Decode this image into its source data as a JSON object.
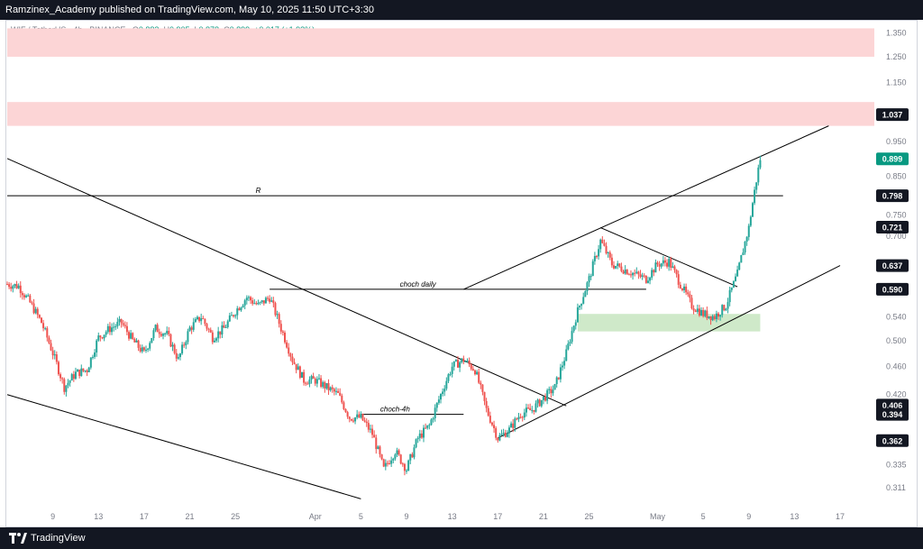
{
  "header": {
    "text": "Ramzinex_Academy published on TradingView.com, May 10, 2025 11:50 UTC+3:30"
  },
  "legend": {
    "symbol": "WIF / TetherUS · 4h · BINANCE",
    "o_label": "O",
    "o": "0.882",
    "h_label": "H",
    "h": "0.905",
    "l_label": "L",
    "l": "0.878",
    "c_label": "C",
    "c": "0.899",
    "change": "+0.017 (+1.93%)"
  },
  "footer": {
    "brand": "TradingView"
  },
  "colors": {
    "up": "#26a69a",
    "down": "#ef5350",
    "supply": "#fcd5d6",
    "demand": "#cfe9c9",
    "last": "#089981",
    "line": "#000000"
  },
  "chart_data": {
    "type": "candlestick",
    "yscale": "log",
    "ylim": [
      0.29,
      1.4
    ],
    "yticks": [
      "1.350",
      "1.250",
      "1.150",
      "0.950",
      "0.850",
      "0.750",
      "0.700",
      "0.540",
      "0.500",
      "0.460",
      "0.420",
      "0.335",
      "0.311"
    ],
    "price_labels": [
      {
        "text": "1.037",
        "value": 1.037,
        "style": "dark"
      },
      {
        "text": "0.899",
        "value": 0.899,
        "style": "last"
      },
      {
        "text": "0.798",
        "value": 0.798,
        "style": "dark"
      },
      {
        "text": "0.721",
        "value": 0.721,
        "style": "dark"
      },
      {
        "text": "0.637",
        "value": 0.637,
        "style": "dark"
      },
      {
        "text": "0.590",
        "value": 0.59,
        "style": "dark"
      },
      {
        "text": "0.406",
        "value": 0.406,
        "style": "dark"
      },
      {
        "text": "0.394",
        "value": 0.394,
        "style": "dark"
      },
      {
        "text": "0.362",
        "value": 0.362,
        "style": "dark"
      }
    ],
    "xticks": [
      {
        "label": "9",
        "date": "2025-03-09"
      },
      {
        "label": "13",
        "date": "2025-03-13"
      },
      {
        "label": "17",
        "date": "2025-03-17"
      },
      {
        "label": "21",
        "date": "2025-03-21"
      },
      {
        "label": "25",
        "date": "2025-03-25"
      },
      {
        "label": "Apr",
        "date": "2025-04-01"
      },
      {
        "label": "5",
        "date": "2025-04-05"
      },
      {
        "label": "9",
        "date": "2025-04-09"
      },
      {
        "label": "13",
        "date": "2025-04-13"
      },
      {
        "label": "17",
        "date": "2025-04-17"
      },
      {
        "label": "21",
        "date": "2025-04-21"
      },
      {
        "label": "25",
        "date": "2025-04-25"
      },
      {
        "label": "May",
        "date": "2025-05-01"
      },
      {
        "label": "5",
        "date": "2025-05-05"
      },
      {
        "label": "9",
        "date": "2025-05-09"
      },
      {
        "label": "13",
        "date": "2025-05-13"
      },
      {
        "label": "17",
        "date": "2025-05-17"
      }
    ],
    "price_path": [
      [
        "2025-03-05",
        0.6
      ],
      [
        "2025-03-06",
        0.596
      ],
      [
        "2025-03-07",
        0.565
      ],
      [
        "2025-03-08",
        0.53
      ],
      [
        "2025-03-09",
        0.48
      ],
      [
        "2025-03-10",
        0.43
      ],
      [
        "2025-03-11",
        0.45
      ],
      [
        "2025-03-12",
        0.455
      ],
      [
        "2025-03-13",
        0.505
      ],
      [
        "2025-03-14",
        0.52
      ],
      [
        "2025-03-15",
        0.53
      ],
      [
        "2025-03-16",
        0.5
      ],
      [
        "2025-03-17",
        0.48
      ],
      [
        "2025-03-18",
        0.52
      ],
      [
        "2025-03-19",
        0.51
      ],
      [
        "2025-03-20",
        0.47
      ],
      [
        "2025-03-21",
        0.52
      ],
      [
        "2025-03-22",
        0.54
      ],
      [
        "2025-03-23",
        0.505
      ],
      [
        "2025-03-24",
        0.52
      ],
      [
        "2025-03-25",
        0.55
      ],
      [
        "2025-03-26",
        0.575
      ],
      [
        "2025-03-27",
        0.56
      ],
      [
        "2025-03-28",
        0.575
      ],
      [
        "2025-03-29",
        0.52
      ],
      [
        "2025-03-30",
        0.47
      ],
      [
        "2025-03-31",
        0.44
      ],
      [
        "2025-04-01",
        0.44
      ],
      [
        "2025-04-02",
        0.43
      ],
      [
        "2025-04-03",
        0.42
      ],
      [
        "2025-04-04",
        0.39
      ],
      [
        "2025-04-05",
        0.39
      ],
      [
        "2025-04-06",
        0.37
      ],
      [
        "2025-04-07",
        0.33
      ],
      [
        "2025-04-08",
        0.35
      ],
      [
        "2025-04-09",
        0.33
      ],
      [
        "2025-04-10",
        0.365
      ],
      [
        "2025-04-11",
        0.38
      ],
      [
        "2025-04-12",
        0.42
      ],
      [
        "2025-04-13",
        0.46
      ],
      [
        "2025-04-14",
        0.47
      ],
      [
        "2025-04-15",
        0.455
      ],
      [
        "2025-04-16",
        0.4
      ],
      [
        "2025-04-17",
        0.365
      ],
      [
        "2025-04-18",
        0.375
      ],
      [
        "2025-04-19",
        0.395
      ],
      [
        "2025-04-20",
        0.4
      ],
      [
        "2025-04-21",
        0.415
      ],
      [
        "2025-04-22",
        0.43
      ],
      [
        "2025-04-23",
        0.48
      ],
      [
        "2025-04-24",
        0.55
      ],
      [
        "2025-04-25",
        0.61
      ],
      [
        "2025-04-26",
        0.69
      ],
      [
        "2025-04-27",
        0.64
      ],
      [
        "2025-04-28",
        0.63
      ],
      [
        "2025-04-29",
        0.62
      ],
      [
        "2025-04-30",
        0.61
      ],
      [
        "2025-05-01",
        0.64
      ],
      [
        "2025-05-02",
        0.645
      ],
      [
        "2025-05-03",
        0.6
      ],
      [
        "2025-05-04",
        0.56
      ],
      [
        "2025-05-05",
        0.545
      ],
      [
        "2025-05-06",
        0.54
      ],
      [
        "2025-05-07",
        0.56
      ],
      [
        "2025-05-08",
        0.62
      ],
      [
        "2025-05-09",
        0.72
      ],
      [
        "2025-05-10",
        0.899
      ]
    ],
    "zones": [
      {
        "type": "supply",
        "from": 1.25,
        "to": 1.37,
        "x_from": "2025-03-05",
        "x_to": "2025-05-20"
      },
      {
        "type": "supply",
        "from": 1.0,
        "to": 1.08,
        "x_from": "2025-03-05",
        "x_to": "2025-05-20"
      },
      {
        "type": "demand",
        "from": 0.515,
        "to": 0.545,
        "x_from": "2025-04-24",
        "x_to": "2025-05-10"
      }
    ],
    "annotations": [
      {
        "text": "R",
        "value": 0.798
      },
      {
        "text": "choch daily",
        "value": 0.59
      },
      {
        "text": "choch-4h",
        "value": 0.394
      }
    ]
  }
}
